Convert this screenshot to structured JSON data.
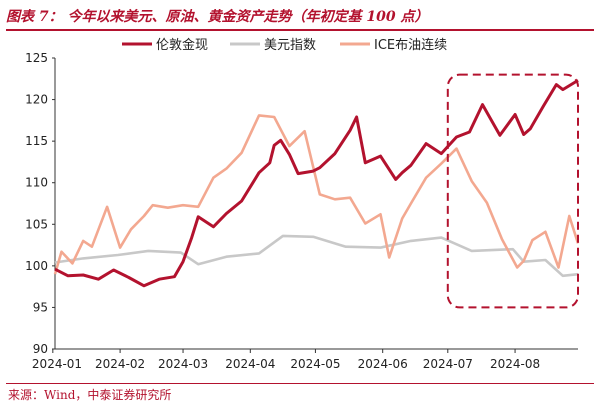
{
  "figure": {
    "title": "图表 7： 今年以来美元、原油、黄金资产走势（年初定基 100 点）",
    "source": "来源：Wind，中泰证券研究所",
    "colors": {
      "title": "#b3122e",
      "gold": "#b3122e",
      "usd": "#c8c8c8",
      "brent": "#f3a890",
      "highlight": "#b3122e",
      "axis": "#333333"
    }
  },
  "chart_data": {
    "type": "line",
    "x_ticks": [
      "2024-01",
      "2024-02",
      "2024-03",
      "2024-04",
      "2024-05",
      "2024-06",
      "2024-07",
      "2024-08"
    ],
    "xlim": [
      "2024-01-02",
      "2024-08-30"
    ],
    "ylim": [
      90,
      125
    ],
    "y_ticks": [
      90,
      95,
      100,
      105,
      110,
      115,
      120,
      125
    ],
    "legend_position": "top-center",
    "highlight_box": {
      "x_range": [
        "2024-07-01",
        "2024-08-30"
      ],
      "y_range": [
        95,
        123
      ],
      "style": "dashed"
    },
    "series": [
      {
        "name": "伦敦金现",
        "color": "#b3122e",
        "x": [
          "2024-01-02",
          "2024-01-08",
          "2024-01-15",
          "2024-01-22",
          "2024-01-29",
          "2024-02-05",
          "2024-02-12",
          "2024-02-19",
          "2024-02-26",
          "2024-03-01",
          "2024-03-05",
          "2024-03-08",
          "2024-03-15",
          "2024-03-21",
          "2024-03-28",
          "2024-04-05",
          "2024-04-10",
          "2024-04-12",
          "2024-04-15",
          "2024-04-19",
          "2024-04-23",
          "2024-04-30",
          "2024-05-03",
          "2024-05-10",
          "2024-05-17",
          "2024-05-20",
          "2024-05-24",
          "2024-05-31",
          "2024-06-07",
          "2024-06-10",
          "2024-06-14",
          "2024-06-21",
          "2024-06-28",
          "2024-07-05",
          "2024-07-11",
          "2024-07-17",
          "2024-07-25",
          "2024-08-01",
          "2024-08-05",
          "2024-08-08",
          "2024-08-14",
          "2024-08-20",
          "2024-08-23",
          "2024-08-30"
        ],
        "values": [
          99.6,
          98.8,
          98.9,
          98.4,
          99.5,
          98.6,
          97.6,
          98.4,
          98.7,
          100.5,
          103.4,
          105.9,
          104.7,
          106.3,
          107.8,
          111.2,
          112.4,
          114.5,
          115.1,
          113.4,
          111.1,
          111.4,
          111.8,
          113.5,
          116.3,
          117.9,
          112.4,
          113.2,
          110.4,
          111.2,
          112.1,
          114.7,
          113.5,
          115.5,
          116.1,
          119.4,
          115.7,
          118.2,
          115.8,
          116.5,
          119.2,
          121.8,
          121.2,
          122.3
        ]
      },
      {
        "name": "美元指数",
        "color": "#c8c8c8",
        "x": [
          "2024-01-02",
          "2024-01-15",
          "2024-01-31",
          "2024-02-14",
          "2024-02-29",
          "2024-03-08",
          "2024-03-21",
          "2024-04-05",
          "2024-04-16",
          "2024-04-30",
          "2024-05-15",
          "2024-05-31",
          "2024-06-14",
          "2024-06-28",
          "2024-07-12",
          "2024-07-31",
          "2024-08-05",
          "2024-08-15",
          "2024-08-23",
          "2024-08-30"
        ],
        "values": [
          100.4,
          100.9,
          101.3,
          101.8,
          101.6,
          100.2,
          101.1,
          101.5,
          103.6,
          103.5,
          102.3,
          102.2,
          103.0,
          103.4,
          101.8,
          102.0,
          100.5,
          100.7,
          98.8,
          99.0
        ]
      },
      {
        "name": "ICE布油连续",
        "color": "#f3a890",
        "x": [
          "2024-01-02",
          "2024-01-05",
          "2024-01-10",
          "2024-01-15",
          "2024-01-19",
          "2024-01-26",
          "2024-02-01",
          "2024-02-06",
          "2024-02-12",
          "2024-02-16",
          "2024-02-23",
          "2024-03-01",
          "2024-03-08",
          "2024-03-15",
          "2024-03-21",
          "2024-03-28",
          "2024-04-05",
          "2024-04-12",
          "2024-04-19",
          "2024-04-26",
          "2024-05-03",
          "2024-05-10",
          "2024-05-17",
          "2024-05-24",
          "2024-05-31",
          "2024-06-04",
          "2024-06-10",
          "2024-06-14",
          "2024-06-21",
          "2024-06-28",
          "2024-07-05",
          "2024-07-12",
          "2024-07-19",
          "2024-07-26",
          "2024-08-02",
          "2024-08-05",
          "2024-08-09",
          "2024-08-15",
          "2024-08-21",
          "2024-08-26",
          "2024-08-30"
        ],
        "values": [
          99.0,
          101.7,
          100.3,
          103.0,
          102.3,
          107.1,
          102.2,
          104.4,
          106.0,
          107.3,
          107.0,
          107.3,
          107.1,
          110.6,
          111.7,
          113.6,
          118.1,
          117.9,
          114.4,
          116.2,
          108.6,
          108.0,
          108.2,
          105.1,
          106.2,
          101.0,
          105.7,
          107.5,
          110.6,
          112.3,
          114.1,
          110.2,
          107.6,
          103.2,
          99.8,
          100.6,
          103.1,
          104.1,
          99.8,
          106.0,
          102.7
        ]
      }
    ]
  }
}
